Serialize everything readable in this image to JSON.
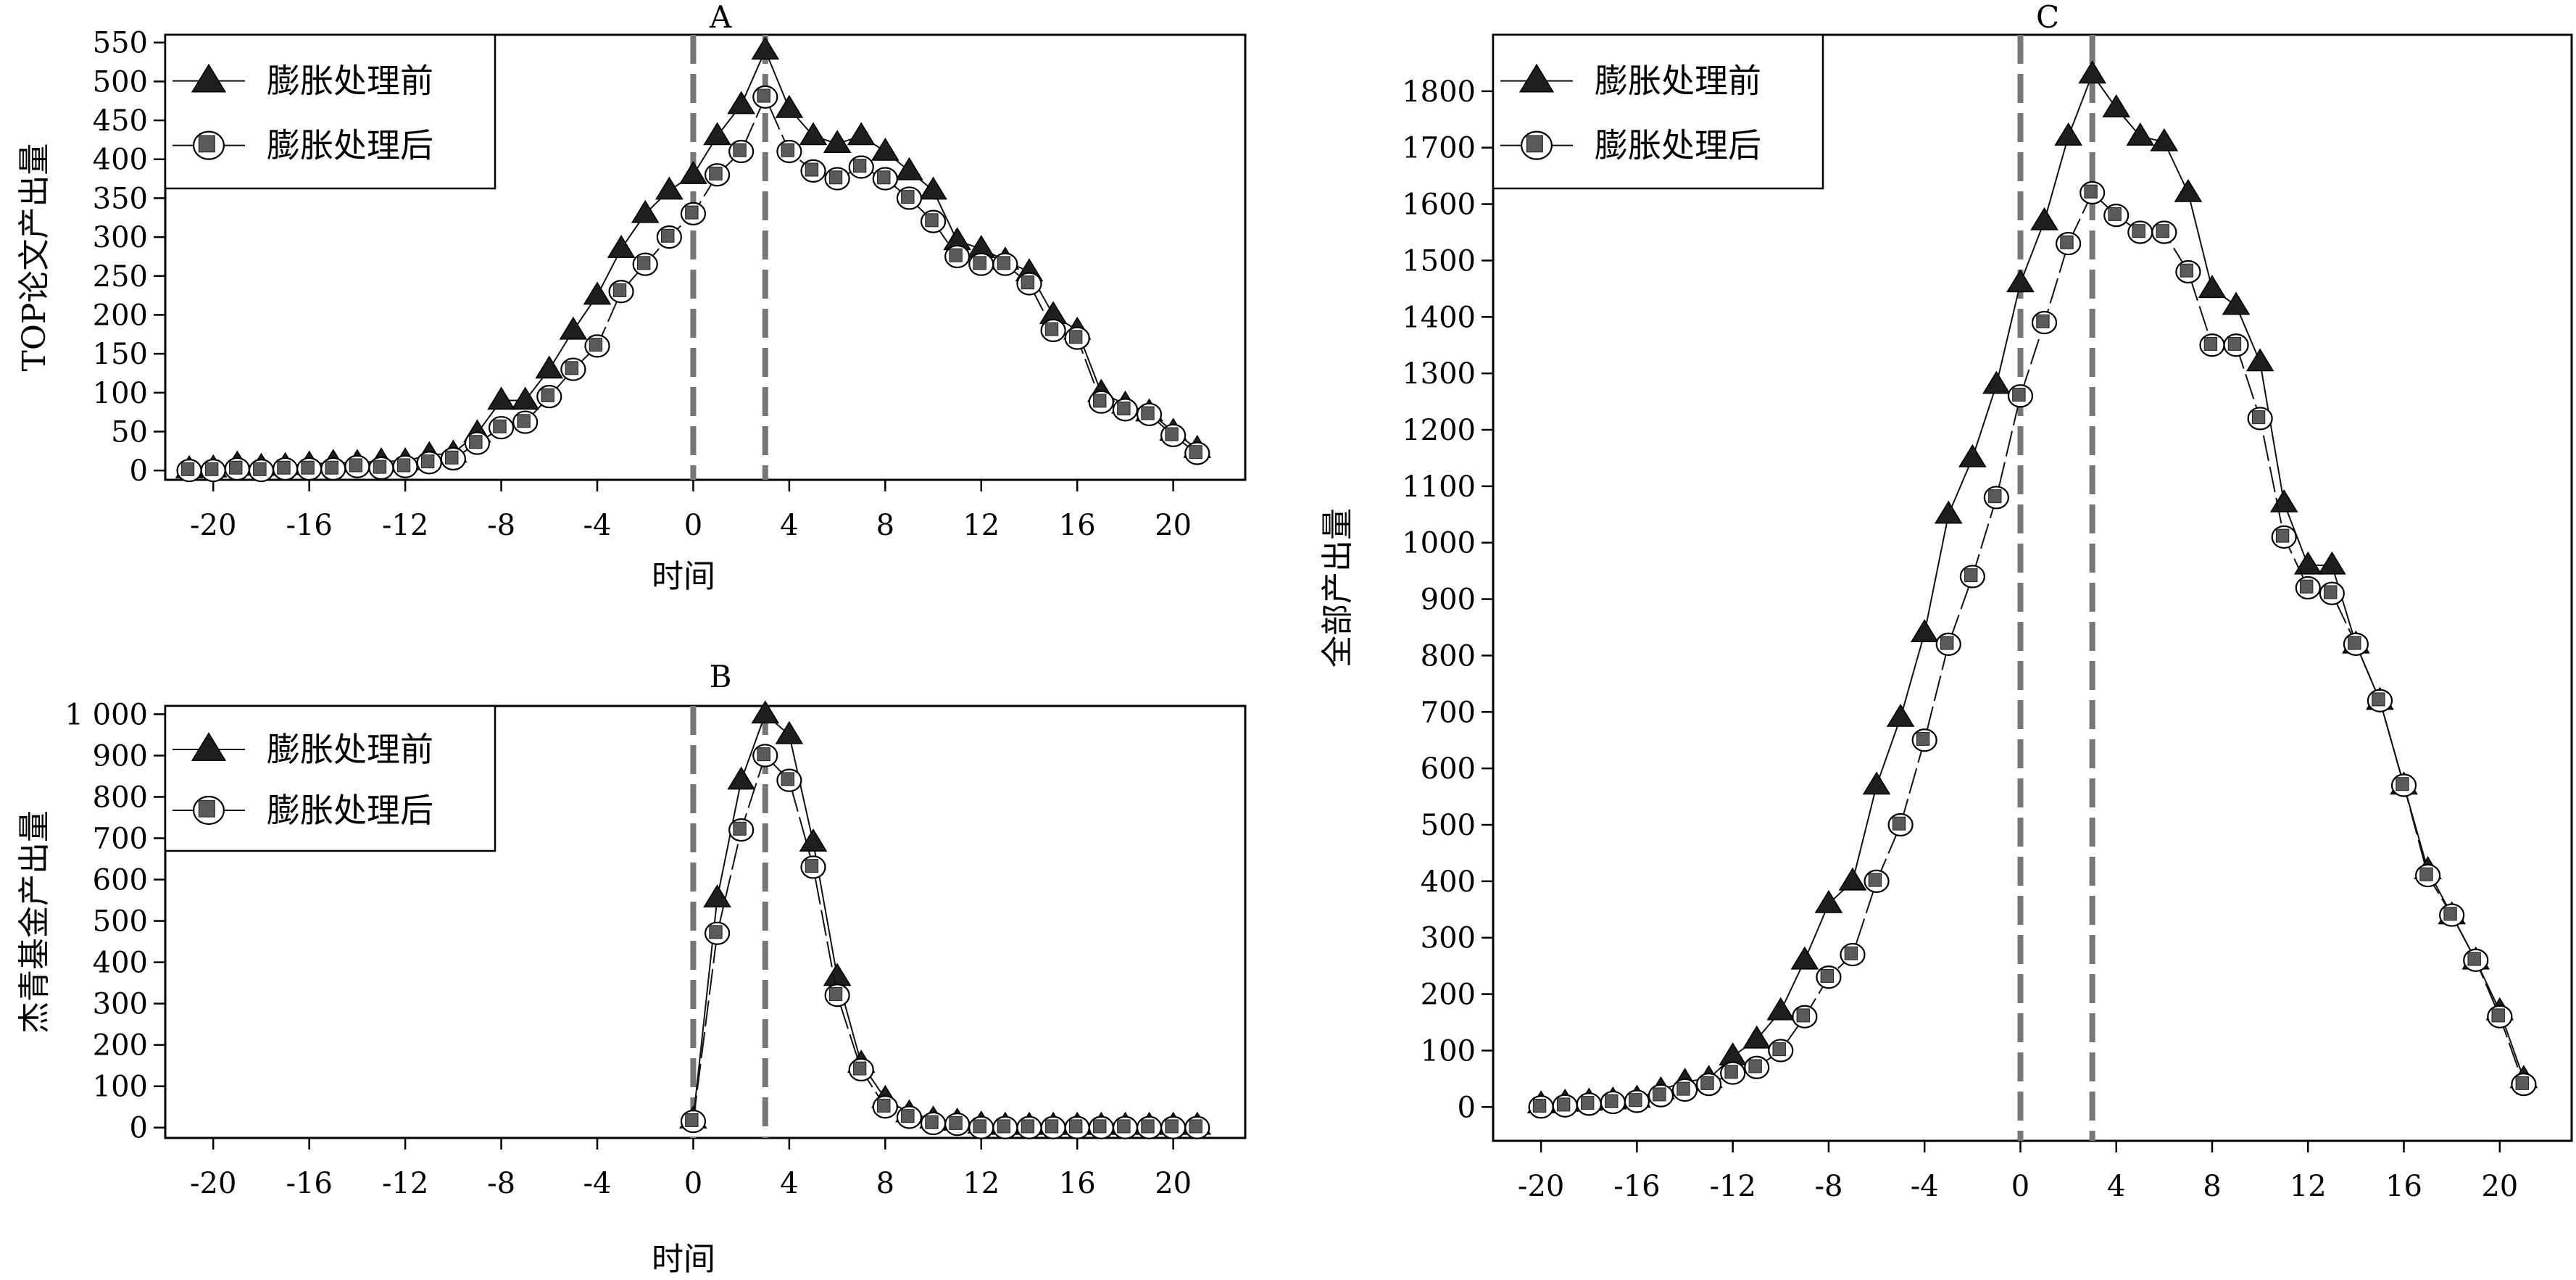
{
  "figure": {
    "colors": {
      "before": "#1e1e1e",
      "after": "#5a5a5a",
      "dashed_line": "#777777",
      "axis": "#000000"
    },
    "reference_lines_x": [
      0,
      3
    ]
  },
  "chart_data": [
    {
      "id": "A",
      "type": "line",
      "title": "A",
      "xlabel": "时间",
      "ylabel": "TOP论文产出量",
      "xlim": [
        -22,
        23
      ],
      "ylim": [
        -12,
        560
      ],
      "xticks": [
        -20,
        -16,
        -12,
        -8,
        -4,
        0,
        4,
        8,
        12,
        16,
        20
      ],
      "xtick_labels": [
        "-20",
        "-16",
        "-12",
        "-8",
        "-4",
        "0",
        "4",
        "8",
        "12",
        "16",
        "20"
      ],
      "yticks": [
        0,
        50,
        100,
        150,
        200,
        250,
        300,
        350,
        400,
        450,
        500,
        550
      ],
      "ytick_labels": [
        "0",
        "50",
        "100",
        "150",
        "200",
        "250",
        "300",
        "350",
        "400",
        "450",
        "500",
        "550"
      ],
      "legend": "top-left",
      "grid": false,
      "x": [
        -21,
        -20,
        -19,
        -18,
        -17,
        -16,
        -15,
        -14,
        -13,
        -12,
        -11,
        -10,
        -9,
        -8,
        -7,
        -6,
        -5,
        -4,
        -3,
        -2,
        -1,
        0,
        1,
        2,
        3,
        4,
        5,
        6,
        7,
        8,
        9,
        10,
        11,
        12,
        13,
        14,
        15,
        16,
        17,
        18,
        19,
        20,
        21
      ],
      "series": [
        {
          "name": "膨胀处理前",
          "marker": "triangle",
          "values": [
            2,
            3,
            8,
            5,
            6,
            8,
            10,
            10,
            12,
            12,
            20,
            22,
            48,
            90,
            90,
            130,
            180,
            225,
            285,
            330,
            360,
            380,
            430,
            470,
            540,
            465,
            430,
            420,
            430,
            410,
            385,
            360,
            295,
            285,
            270,
            255,
            200,
            180,
            100,
            85,
            75,
            50,
            28
          ]
        },
        {
          "name": "膨胀处理后",
          "marker": "circle-square",
          "values": [
            0,
            0,
            2,
            0,
            2,
            2,
            2,
            5,
            3,
            5,
            10,
            15,
            35,
            55,
            62,
            95,
            130,
            160,
            230,
            265,
            300,
            330,
            380,
            410,
            480,
            410,
            385,
            375,
            390,
            375,
            350,
            320,
            275,
            265,
            265,
            240,
            180,
            170,
            88,
            78,
            72,
            45,
            22
          ]
        }
      ]
    },
    {
      "id": "B",
      "type": "line",
      "title": "B",
      "xlabel": "时间",
      "ylabel": "杰青基金产出量",
      "xlim": [
        -22,
        23
      ],
      "ylim": [
        -25,
        1020
      ],
      "xticks": [
        -20,
        -16,
        -12,
        -8,
        -4,
        0,
        4,
        8,
        12,
        16,
        20
      ],
      "xtick_labels": [
        "-20",
        "-16",
        "-12",
        "-8",
        "-4",
        "0",
        "4",
        "8",
        "12",
        "16",
        "20"
      ],
      "yticks": [
        0,
        100,
        200,
        300,
        400,
        500,
        600,
        700,
        800,
        900,
        1000
      ],
      "ytick_labels": [
        "0",
        "100",
        "200",
        "300",
        "400",
        "500",
        "600",
        "700",
        "800",
        "900",
        "1 000"
      ],
      "legend": "top-left",
      "grid": false,
      "x": [
        0,
        1,
        2,
        3,
        4,
        5,
        6,
        7,
        8,
        9,
        10,
        11,
        12,
        13,
        14,
        15,
        16,
        17,
        18,
        19,
        20,
        21
      ],
      "series": [
        {
          "name": "膨胀处理前",
          "marker": "triangle",
          "values": [
            20,
            555,
            840,
            1000,
            950,
            690,
            365,
            155,
            70,
            35,
            20,
            15,
            8,
            5,
            5,
            5,
            5,
            5,
            5,
            5,
            5,
            5
          ]
        },
        {
          "name": "膨胀处理后",
          "marker": "circle-square",
          "values": [
            15,
            470,
            720,
            900,
            840,
            630,
            320,
            140,
            50,
            25,
            10,
            8,
            0,
            0,
            0,
            0,
            0,
            0,
            0,
            0,
            0,
            0
          ]
        }
      ]
    },
    {
      "id": "C",
      "type": "line",
      "title": "C",
      "xlabel": "",
      "ylabel": "全部产出量",
      "xlim": [
        -22,
        23
      ],
      "ylim": [
        -60,
        1900
      ],
      "xticks": [
        -20,
        -16,
        -12,
        -8,
        -4,
        0,
        4,
        8,
        12,
        16,
        20
      ],
      "xtick_labels": [
        "-20",
        "-16",
        "-12",
        "-8",
        "-4",
        "0",
        "4",
        "8",
        "12",
        "16",
        "20"
      ],
      "yticks": [
        0,
        100,
        200,
        300,
        400,
        500,
        600,
        700,
        800,
        900,
        1000,
        1100,
        1200,
        1300,
        1400,
        1500,
        1600,
        1700,
        1800
      ],
      "ytick_labels": [
        "0",
        "100",
        "200",
        "300",
        "400",
        "500",
        "600",
        "700",
        "800",
        "900",
        "1000",
        "1100",
        "1200",
        "1300",
        "1400",
        "1500",
        "1600",
        "1700",
        "1800"
      ],
      "legend": "top-left",
      "grid": false,
      "x": [
        -20,
        -19,
        -18,
        -17,
        -16,
        -15,
        -14,
        -13,
        -12,
        -11,
        -10,
        -9,
        -8,
        -7,
        -6,
        -5,
        -4,
        -3,
        -2,
        -1,
        0,
        1,
        2,
        3,
        4,
        5,
        6,
        7,
        8,
        9,
        10,
        11,
        12,
        13,
        14,
        15,
        16,
        17,
        18,
        19,
        20,
        21
      ],
      "series": [
        {
          "name": "膨胀处理前",
          "marker": "triangle",
          "values": [
            5,
            8,
            10,
            12,
            15,
            30,
            45,
            50,
            90,
            120,
            170,
            260,
            360,
            400,
            570,
            690,
            840,
            1050,
            1150,
            1280,
            1460,
            1570,
            1720,
            1830,
            1770,
            1720,
            1710,
            1620,
            1450,
            1420,
            1320,
            1070,
            960,
            960,
            820,
            720,
            570,
            420,
            340,
            260,
            170,
            50
          ]
        },
        {
          "name": "膨胀处理后",
          "marker": "circle-square",
          "values": [
            0,
            2,
            5,
            8,
            10,
            20,
            30,
            40,
            60,
            70,
            100,
            160,
            230,
            270,
            400,
            500,
            650,
            820,
            940,
            1080,
            1260,
            1390,
            1530,
            1620,
            1580,
            1550,
            1550,
            1480,
            1350,
            1350,
            1220,
            1010,
            920,
            910,
            820,
            720,
            570,
            410,
            340,
            260,
            160,
            40
          ]
        }
      ]
    }
  ]
}
